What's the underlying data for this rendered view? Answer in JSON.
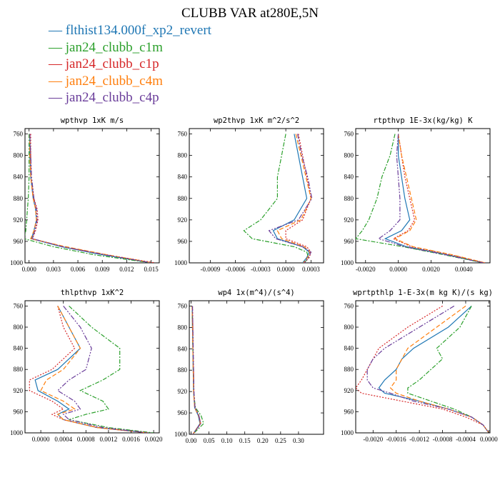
{
  "title": "CLUBB VAR at280E,5N",
  "legend": [
    {
      "label": "flthist134.000f_xp2_revert",
      "color": "#1f77b4"
    },
    {
      "label": "jan24_clubb_c1m",
      "color": "#2ca02c"
    },
    {
      "label": "jan24_clubb_c1p",
      "color": "#d62728"
    },
    {
      "label": "jan24_clubb_c4m",
      "color": "#ff7f0e"
    },
    {
      "label": "jan24_clubb_c4p",
      "color": "#6a3d9a"
    }
  ],
  "chart_data": [
    {
      "type": "line",
      "title": "wpthvp  1xK m/s",
      "xlim": [
        -0.0005,
        0.016
      ],
      "ylim": [
        1000,
        750
      ],
      "xticks": [
        "0.000",
        "0.003",
        "0.006",
        "0.009",
        "0.012",
        "0.015"
      ],
      "xtick_values": [
        0,
        0.003,
        0.006,
        0.009,
        0.012,
        0.015
      ],
      "yticks": [
        760,
        800,
        840,
        880,
        920,
        960,
        1000
      ],
      "y": [
        760,
        800,
        840,
        880,
        900,
        920,
        940,
        955,
        970,
        985,
        1000
      ],
      "series": [
        {
          "name": "flthist134.000f_xp2_revert",
          "values": [
            0.0001,
            0.0001,
            0.0002,
            0.0005,
            0.0008,
            0.0009,
            0.0006,
            0.0003,
            0.004,
            0.009,
            0.015
          ]
        },
        {
          "name": "jan24_clubb_c1m",
          "values": [
            0.0,
            0.0,
            0.0,
            -0.0001,
            -0.0002,
            -0.0003,
            -0.0004,
            -0.0006,
            0.003,
            0.008,
            0.015
          ]
        },
        {
          "name": "jan24_clubb_c1p",
          "values": [
            0.0002,
            0.0002,
            0.0003,
            0.0006,
            0.001,
            0.0011,
            0.0008,
            0.0004,
            0.0042,
            0.0095,
            0.0155
          ]
        },
        {
          "name": "jan24_clubb_c4m",
          "values": [
            0.0001,
            0.0001,
            0.0002,
            0.0005,
            0.0008,
            0.0009,
            0.0006,
            0.0002,
            0.0045,
            0.0096,
            0.0152
          ]
        },
        {
          "name": "jan24_clubb_c4p",
          "values": [
            0.0001,
            0.0002,
            0.0003,
            0.0006,
            0.0009,
            0.001,
            0.0007,
            0.0004,
            0.0041,
            0.0093,
            0.0151
          ]
        }
      ]
    },
    {
      "type": "line",
      "title": "wp2thvp  1xK m^2/s^2",
      "xlim": [
        -0.00115,
        0.00045
      ],
      "ylim": [
        1000,
        750
      ],
      "xticks": [
        "-0.0009",
        "-0.0006",
        "-0.0003",
        "0.0000",
        "0.0003"
      ],
      "xtick_values": [
        -0.0009,
        -0.0006,
        -0.0003,
        0,
        0.0003
      ],
      "yticks": [
        760,
        800,
        840,
        880,
        920,
        960,
        1000
      ],
      "y": [
        760,
        800,
        840,
        880,
        920,
        940,
        955,
        970,
        980,
        990,
        1000
      ],
      "series": [
        {
          "name": "flthist134.000f_xp2_revert",
          "values": [
            0.0001,
            0.00015,
            0.0002,
            0.00025,
            0.0001,
            -0.00015,
            -0.0001,
            0.0002,
            0.00028,
            0.00025,
            0.0002
          ]
        },
        {
          "name": "jan24_clubb_c1m",
          "values": [
            0.0,
            -5e-05,
            -0.0001,
            -0.0001,
            -0.0003,
            -0.0005,
            -0.0004,
            0.0001,
            0.00025,
            0.00027,
            0.00022
          ]
        },
        {
          "name": "jan24_clubb_c1p",
          "values": [
            0.00015,
            0.0002,
            0.00025,
            0.0003,
            0.0002,
            0.0,
            0.0,
            0.00025,
            0.0003,
            0.00028,
            0.00022
          ]
        },
        {
          "name": "jan24_clubb_c4m",
          "values": [
            0.00012,
            0.00018,
            0.00024,
            0.0003,
            0.00018,
            -0.0001,
            -5e-05,
            0.00022,
            0.00029,
            0.00026,
            0.00021
          ]
        },
        {
          "name": "jan24_clubb_c4p",
          "values": [
            0.00014,
            0.00019,
            0.00026,
            0.00031,
            0.00015,
            -0.0002,
            -0.00012,
            0.0002,
            0.0003,
            0.00027,
            0.00022
          ]
        }
      ]
    },
    {
      "type": "line",
      "title": "rtpthvp  1E-3x(kg/kg) K",
      "xlim": [
        -0.0026,
        0.0056
      ],
      "ylim": [
        1000,
        750
      ],
      "xticks": [
        "-0.0020",
        "0.0000",
        "0.0020",
        "0.0040"
      ],
      "xtick_values": [
        -0.002,
        0,
        0.002,
        0.004
      ],
      "yticks": [
        760,
        800,
        840,
        880,
        920,
        960,
        1000
      ],
      "y": [
        760,
        800,
        840,
        880,
        920,
        940,
        955,
        970,
        985,
        1000
      ],
      "series": [
        {
          "name": "flthist134.000f_xp2_revert",
          "values": [
            0.0,
            0.0,
            0.0002,
            0.0004,
            0.0007,
            0.0002,
            -0.0008,
            0.0005,
            0.003,
            0.0052
          ]
        },
        {
          "name": "jan24_clubb_c1m",
          "values": [
            -0.0002,
            -0.0005,
            -0.001,
            -0.0013,
            -0.0018,
            -0.0022,
            -0.0026,
            0.0003,
            0.0028,
            0.0052
          ]
        },
        {
          "name": "jan24_clubb_c1p",
          "values": [
            0.0,
            0.0002,
            0.0004,
            0.0007,
            0.001,
            0.0006,
            -0.0003,
            0.0008,
            0.0032,
            0.0053
          ]
        },
        {
          "name": "jan24_clubb_c4m",
          "values": [
            0.0,
            0.0002,
            0.0005,
            0.0008,
            0.0011,
            0.0007,
            -0.0002,
            0.0009,
            0.0033,
            0.0053
          ]
        },
        {
          "name": "jan24_clubb_c4p",
          "values": [
            0.0,
            -0.0001,
            0.0,
            0.0001,
            0.0001,
            -0.0005,
            -0.0012,
            0.0004,
            0.0029,
            0.0052
          ]
        }
      ]
    },
    {
      "type": "line",
      "title": "thlpthvp  1xK^2",
      "xlim": [
        -0.00028,
        0.0021
      ],
      "ylim": [
        1000,
        750
      ],
      "xticks": [
        "0.0000",
        "0.0004",
        "0.0008",
        "0.0012",
        "0.0016",
        "0.0020"
      ],
      "xtick_values": [
        0,
        0.0004,
        0.0008,
        0.0012,
        0.0016,
        0.002
      ],
      "yticks": [
        760,
        800,
        840,
        880,
        920,
        960,
        1000
      ],
      "y": [
        760,
        800,
        840,
        880,
        900,
        920,
        940,
        955,
        965,
        975,
        990,
        1000
      ],
      "series": [
        {
          "name": "flthist134.000f_xp2_revert",
          "values": [
            0.0003,
            0.0005,
            0.0007,
            0.0003,
            -0.0001,
            -5e-05,
            0.0003,
            0.0005,
            0.0003,
            0.0004,
            0.001,
            0.0019
          ]
        },
        {
          "name": "jan24_clubb_c1m",
          "values": [
            0.0005,
            0.0009,
            0.0014,
            0.0014,
            0.0011,
            0.0007,
            0.0011,
            0.0012,
            0.0008,
            0.0005,
            0.0012,
            0.002
          ]
        },
        {
          "name": "jan24_clubb_c1p",
          "values": [
            0.0003,
            0.0004,
            0.0006,
            0.0002,
            -0.0002,
            -0.0002,
            0.0002,
            0.0004,
            0.0002,
            0.0004,
            0.001,
            0.0019
          ]
        },
        {
          "name": "jan24_clubb_c4m",
          "values": [
            0.0003,
            0.0005,
            0.0007,
            0.0004,
            0.0001,
            0.0,
            0.0004,
            0.0006,
            0.0003,
            0.0004,
            0.001,
            0.0019
          ]
        },
        {
          "name": "jan24_clubb_c4p",
          "values": [
            0.0004,
            0.0007,
            0.0009,
            0.0008,
            0.0005,
            0.0003,
            0.0006,
            0.0007,
            0.0004,
            0.0005,
            0.0011,
            0.0019
          ]
        }
      ]
    },
    {
      "type": "line",
      "title": "wp4  1x(m^4)/(s^4)",
      "xlim": [
        -0.005,
        0.37
      ],
      "ylim": [
        1000,
        750
      ],
      "xticks": [
        "0.00",
        "0.05",
        "0.10",
        "0.15",
        "0.20",
        "0.25",
        "0.30"
      ],
      "xtick_values": [
        0,
        0.05,
        0.1,
        0.15,
        0.2,
        0.25,
        0.3
      ],
      "yticks": [
        760,
        800,
        840,
        880,
        920,
        960,
        1000
      ],
      "y": [
        760,
        800,
        840,
        880,
        920,
        950,
        965,
        980,
        990,
        1000
      ],
      "series": [
        {
          "name": "flthist134.000f_xp2_revert",
          "values": [
            0.003,
            0.004,
            0.005,
            0.006,
            0.007,
            0.01,
            0.02,
            0.025,
            0.015,
            0.005
          ]
        },
        {
          "name": "jan24_clubb_c1m",
          "values": [
            0.003,
            0.004,
            0.005,
            0.006,
            0.007,
            0.012,
            0.028,
            0.035,
            0.02,
            0.005
          ]
        },
        {
          "name": "jan24_clubb_c1p",
          "values": [
            0.004,
            0.005,
            0.006,
            0.007,
            0.008,
            0.011,
            0.022,
            0.027,
            0.016,
            0.005
          ]
        },
        {
          "name": "jan24_clubb_c4m",
          "values": [
            0.003,
            0.004,
            0.005,
            0.006,
            0.007,
            0.01,
            0.021,
            0.026,
            0.015,
            0.005
          ]
        },
        {
          "name": "jan24_clubb_c4p",
          "values": [
            0.004,
            0.005,
            0.006,
            0.007,
            0.008,
            0.011,
            0.022,
            0.027,
            0.016,
            0.005
          ]
        }
      ]
    },
    {
      "type": "line",
      "title": "wprtpthlp  1-E-3x(m kg K)/(s kg)",
      "xlim": [
        -0.0023,
        2e-05
      ],
      "ylim": [
        1000,
        750
      ],
      "xticks": [
        "-0.0020",
        "-0.0016",
        "-0.0012",
        "-0.0008",
        "-0.0004",
        "0.0000"
      ],
      "xtick_values": [
        -0.002,
        -0.0016,
        -0.0012,
        -0.0008,
        -0.0004,
        0
      ],
      "yticks": [
        760,
        800,
        840,
        880,
        920,
        960,
        1000
      ],
      "y": [
        760,
        800,
        840,
        860,
        880,
        900,
        915,
        925,
        940,
        955,
        970,
        985,
        1000
      ],
      "series": [
        {
          "name": "flthist134.000f_xp2_revert",
          "values": [
            -0.0003,
            -0.0007,
            -0.0013,
            -0.0015,
            -0.0016,
            -0.0018,
            -0.0019,
            -0.0018,
            -0.0012,
            -0.0007,
            -0.0003,
            -0.0001,
            0.0
          ]
        },
        {
          "name": "jan24_clubb_c1m",
          "values": [
            -0.0003,
            -0.0005,
            -0.0009,
            -0.0008,
            -0.001,
            -0.0012,
            -0.0014,
            -0.0014,
            -0.001,
            -0.0006,
            -0.0003,
            -0.0001,
            0.0
          ]
        },
        {
          "name": "jan24_clubb_c1p",
          "values": [
            -0.0008,
            -0.0014,
            -0.0019,
            -0.002,
            -0.0021,
            -0.0022,
            -0.0023,
            -0.0022,
            -0.0015,
            -0.0008,
            -0.0004,
            -0.0001,
            0.0
          ]
        },
        {
          "name": "jan24_clubb_c4m",
          "values": [
            -0.0004,
            -0.0009,
            -0.0014,
            -0.0015,
            -0.0016,
            -0.0016,
            -0.0017,
            -0.0016,
            -0.0012,
            -0.0007,
            -0.0003,
            -0.0001,
            0.0
          ]
        },
        {
          "name": "jan24_clubb_c4p",
          "values": [
            -0.0006,
            -0.0012,
            -0.0018,
            -0.002,
            -0.0021,
            -0.0021,
            -0.002,
            -0.0017,
            -0.0013,
            -0.0007,
            -0.0003,
            -0.0001,
            0.0
          ]
        }
      ]
    }
  ]
}
